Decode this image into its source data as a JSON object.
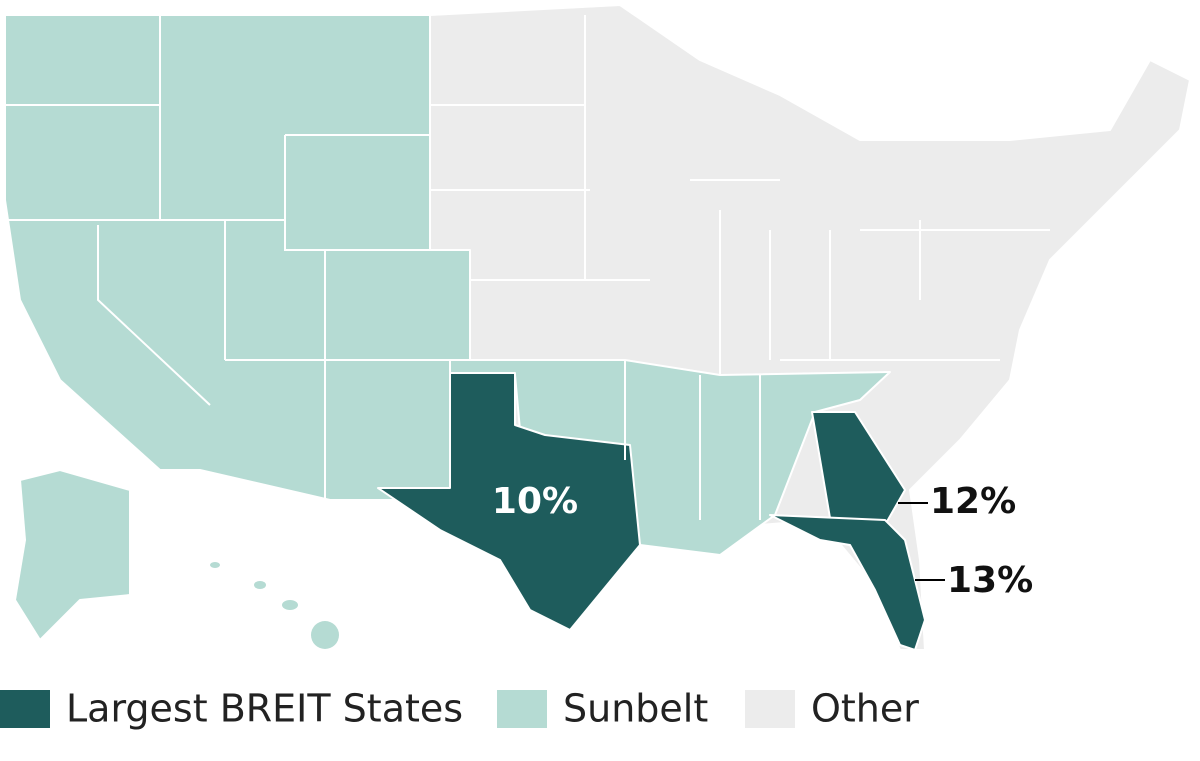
{
  "annotations": [
    "10%",
    "12%",
    "13%"
  ],
  "legend": [
    {
      "label": "Largest BREIT States",
      "color": "#1e5c5c"
    },
    {
      "label": "Sunbelt",
      "color": "#b5dbd3"
    },
    {
      "label": "Other",
      "color": "#ececec"
    }
  ]
}
